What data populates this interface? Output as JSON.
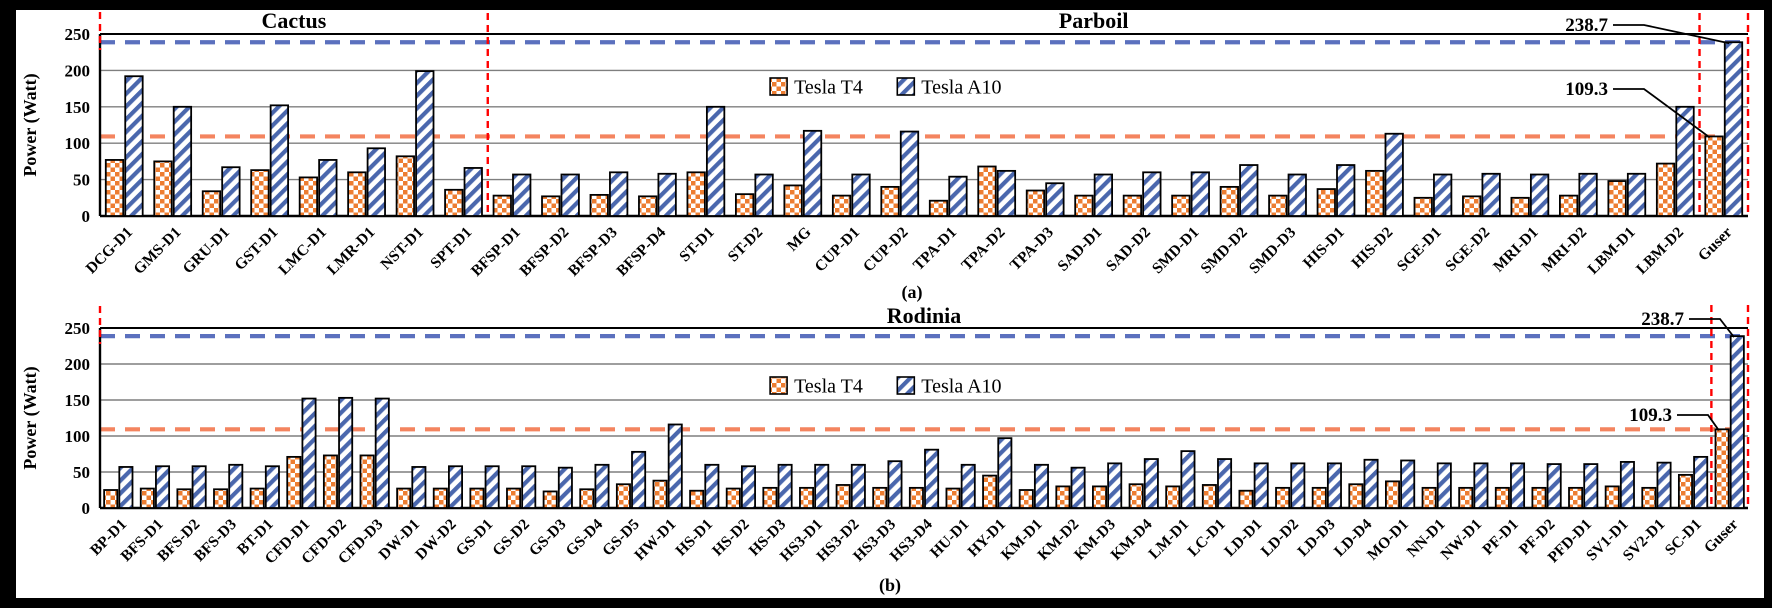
{
  "figure": {
    "description": "GPU power comparison, Tesla T4 vs Tesla A10, two stacked bar-chart panels",
    "panel_labels": [
      "(a)",
      "(b)"
    ]
  },
  "colors": {
    "t4_fill": "#ED7D31",
    "a10_fill": "#4A67AD",
    "blue_dash": "#5B70BE",
    "orange_dash": "#F4845F",
    "red": "#FF0000",
    "grid": "#7F7F7F",
    "background": "#FFFFFF",
    "frame": "#000000"
  },
  "chart_data": [
    {
      "type": "bar",
      "panel_label": "(a)",
      "section_titles": [
        {
          "label": "Cactus",
          "from": 0,
          "to": 8
        },
        {
          "label": "Parboil",
          "from": 8,
          "to": 33
        }
      ],
      "ylabel": "Power (Watt)",
      "ylim": [
        0,
        250
      ],
      "yticks": [
        0,
        50,
        100,
        150,
        200,
        250
      ],
      "grid": true,
      "legend_position": "top-center-inside",
      "categories": [
        "DCG-D1",
        "GMS-D1",
        "GRU-D1",
        "GST-D1",
        "LMC-D1",
        "LMR-D1",
        "NST-D1",
        "SPT-D1",
        "BFSP-D1",
        "BFSP-D2",
        "BFSP-D3",
        "BFSP-D4",
        "ST-D1",
        "ST-D2",
        "MG",
        "CUP-D1",
        "CUP-D2",
        "TPA-D1",
        "TPA-D2",
        "TPA-D3",
        "SAD-D1",
        "SAD-D2",
        "SMD-D1",
        "SMD-D2",
        "SMD-D3",
        "HIS-D1",
        "HIS-D2",
        "SGE-D1",
        "SGE-D2",
        "MRI-D1",
        "MRI-D2",
        "LBM-D1",
        "LBM-D2",
        "Guser"
      ],
      "series": [
        {
          "name": "Tesla T4",
          "values": [
            77,
            75,
            34,
            63,
            53,
            60,
            82,
            36,
            28,
            27,
            29,
            27,
            60,
            30,
            42,
            28,
            40,
            21,
            68,
            35,
            28,
            28,
            28,
            40,
            28,
            37,
            62,
            25,
            27,
            25,
            28,
            48,
            72,
            109.3
          ]
        },
        {
          "name": "Tesla A10",
          "values": [
            192,
            150,
            67,
            152,
            77,
            93,
            199,
            66,
            57,
            57,
            60,
            58,
            150,
            57,
            117,
            57,
            116,
            54,
            62,
            45,
            57,
            60,
            60,
            70,
            57,
            70,
            113,
            57,
            58,
            57,
            58,
            58,
            150,
            238.7
          ]
        }
      ],
      "hlines": [
        {
          "value": 238.7,
          "color_key": "blue_dash",
          "name": "a10-max-power-refline"
        },
        {
          "value": 109.3,
          "color_key": "orange_dash",
          "name": "t4-max-power-refline"
        }
      ],
      "divider_boundaries": [
        0,
        8,
        33,
        34
      ],
      "annotations": [
        {
          "text": "238.7",
          "category": "Guser",
          "series_index": 1
        },
        {
          "text": "109.3",
          "category": "Guser",
          "series_index": 0
        }
      ]
    },
    {
      "type": "bar",
      "panel_label": "(b)",
      "section_titles": [
        {
          "label": "Rodinia",
          "from": 0,
          "to": 45
        }
      ],
      "ylabel": "Power (Watt)",
      "ylim": [
        0,
        250
      ],
      "yticks": [
        0,
        50,
        100,
        150,
        200,
        250
      ],
      "grid": true,
      "legend_position": "top-center-inside",
      "categories": [
        "BP-D1",
        "BFS-D1",
        "BFS-D2",
        "BFS-D3",
        "BT-D1",
        "CFD-D1",
        "CFD-D2",
        "CFD-D3",
        "DW-D1",
        "DW-D2",
        "GS-D1",
        "GS-D2",
        "GS-D3",
        "GS-D4",
        "GS-D5",
        "HW-D1",
        "HS-D1",
        "HS-D2",
        "HS-D3",
        "HS3-D1",
        "HS3-D2",
        "HS3-D3",
        "HS3-D4",
        "HU-D1",
        "HY-D1",
        "KM-D1",
        "KM-D2",
        "KM-D3",
        "KM-D4",
        "LM-D1",
        "LC-D1",
        "LD-D1",
        "LD-D2",
        "LD-D3",
        "LD-D4",
        "MO-D1",
        "NN-D1",
        "NW-D1",
        "PF-D1",
        "PF-D2",
        "PFD-D1",
        "SV1-D1",
        "SV2-D1",
        "SC-D1",
        "Guser"
      ],
      "series": [
        {
          "name": "Tesla T4",
          "values": [
            25,
            27,
            26,
            26,
            27,
            71,
            73,
            73,
            27,
            27,
            27,
            27,
            23,
            26,
            33,
            38,
            24,
            27,
            28,
            28,
            32,
            28,
            28,
            27,
            45,
            25,
            30,
            30,
            33,
            30,
            32,
            24,
            28,
            28,
            33,
            37,
            28,
            28,
            28,
            28,
            28,
            30,
            28,
            46,
            109.3
          ]
        },
        {
          "name": "Tesla A10",
          "values": [
            57,
            58,
            58,
            60,
            58,
            152,
            153,
            152,
            57,
            58,
            58,
            58,
            56,
            60,
            78,
            116,
            60,
            58,
            60,
            60,
            60,
            65,
            81,
            60,
            97,
            60,
            56,
            62,
            68,
            79,
            68,
            62,
            62,
            62,
            67,
            66,
            62,
            62,
            62,
            61,
            61,
            64,
            63,
            71,
            238.7
          ]
        }
      ],
      "hlines": [
        {
          "value": 238.7,
          "color_key": "blue_dash",
          "name": "a10-max-power-refline"
        },
        {
          "value": 109.3,
          "color_key": "orange_dash",
          "name": "t4-max-power-refline"
        }
      ],
      "divider_boundaries": [
        0,
        44,
        45
      ],
      "annotations": [
        {
          "text": "238.7",
          "category": "Guser",
          "series_index": 1
        },
        {
          "text": "109.3",
          "category": "Guser",
          "series_index": 0
        }
      ]
    }
  ]
}
